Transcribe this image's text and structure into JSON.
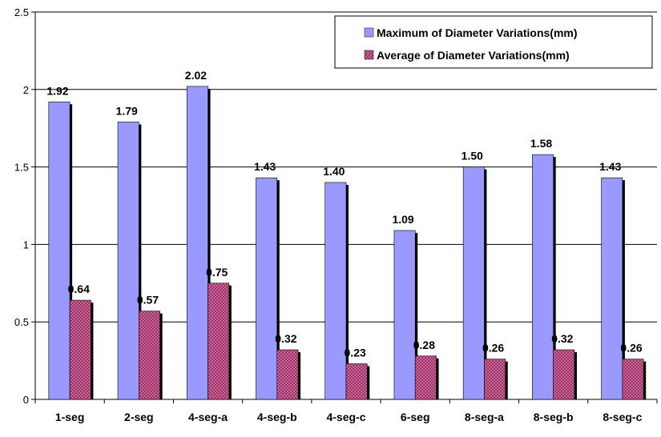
{
  "chart_data": {
    "type": "bar",
    "categories": [
      "1-seg",
      "2-seg",
      "4-seg-a",
      "4-seg-b",
      "4-seg-c",
      "6-seg",
      "8-seg-a",
      "8-seg-b",
      "8-seg-c"
    ],
    "series": [
      {
        "name": "Maximum of Diameter Variations(mm)",
        "values": [
          1.92,
          1.79,
          2.02,
          1.43,
          1.4,
          1.09,
          1.5,
          1.58,
          1.43
        ],
        "labels": [
          "1.92",
          "1.79",
          "2.02",
          "1.43",
          "1.40",
          "1.09",
          "1.50",
          "1.58",
          "1.43"
        ],
        "color": "#9999ff"
      },
      {
        "name": "Average of Diameter Variations(mm)",
        "values": [
          0.64,
          0.57,
          0.75,
          0.32,
          0.23,
          0.28,
          0.26,
          0.32,
          0.26
        ],
        "labels": [
          "0.64",
          "0.57",
          "0.75",
          "0.32",
          "0.23",
          "0.28",
          "0.26",
          "0.32",
          "0.26"
        ],
        "color": "#993366"
      }
    ],
    "yticks": [
      "0",
      "0.5",
      "1",
      "1.5",
      "2",
      "2.5"
    ],
    "ylim": [
      0,
      2.5
    ],
    "grid": true,
    "legend": "top-right"
  }
}
